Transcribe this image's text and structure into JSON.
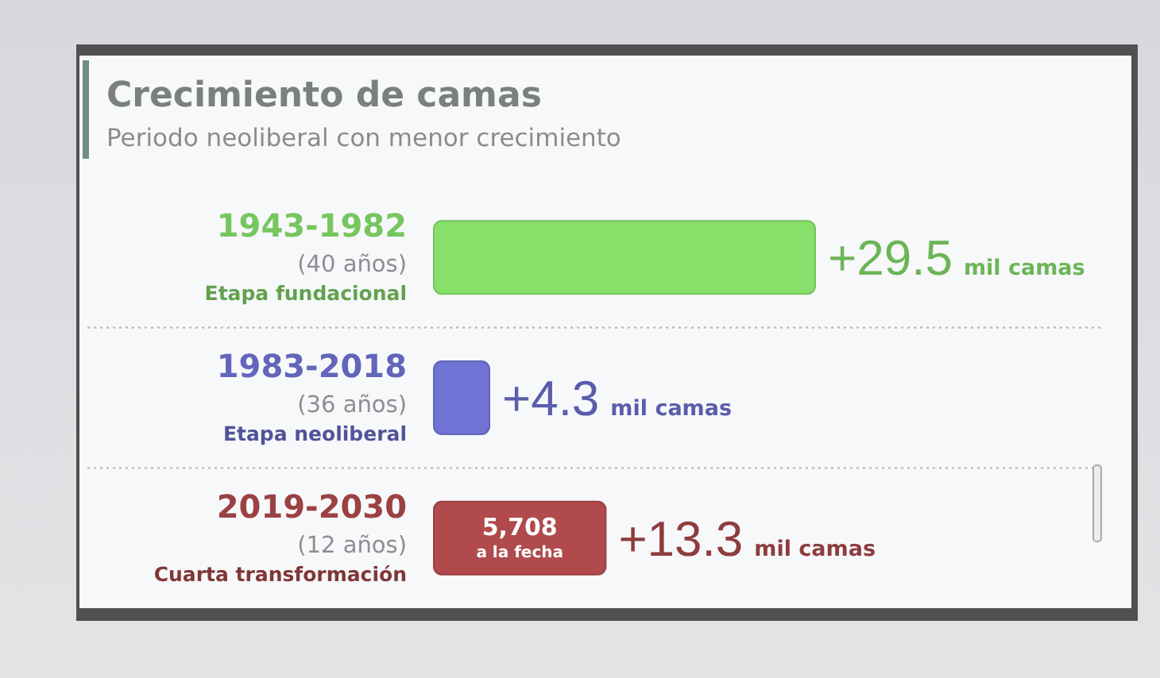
{
  "chart_data": {
    "type": "bar",
    "orientation": "horizontal",
    "title": "Crecimiento de camas",
    "subtitle": "Periodo neoliberal con menor crecimiento",
    "categories": [
      "1943-1982\n(40 años)\nEtapa fundacional",
      "1983-2018\n(36 años)\nEtapa neoliberal",
      "2019-2030\n(12 años)\nCuarta transformación"
    ],
    "values": [
      29.5,
      4.3,
      13.3
    ],
    "colors": [
      "#86e06a",
      "#6f73d3",
      "#b04a4c"
    ],
    "value_labels": [
      "+29.5 mil camas",
      "+4.3 mil camas",
      "+13.3 mil camas"
    ],
    "annotations": [
      "5,708\na la fecha"
    ]
  }
}
